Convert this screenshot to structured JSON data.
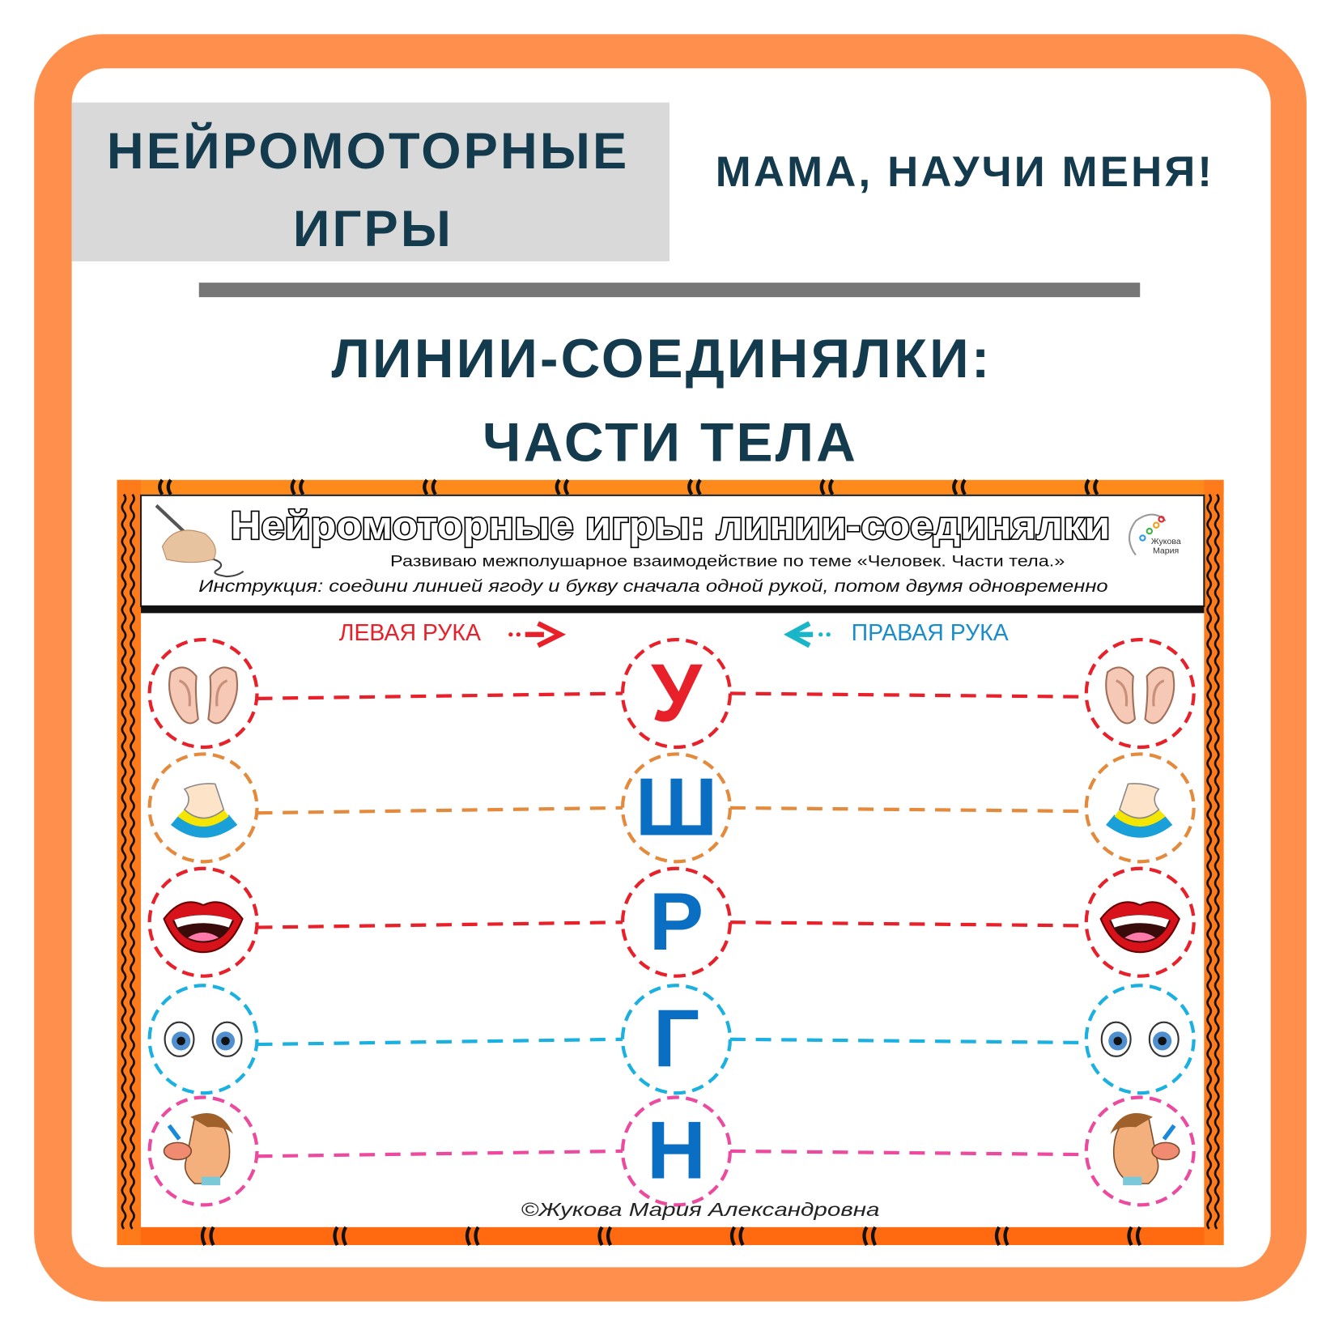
{
  "header": {
    "series_line1": "НЕЙРОМОТОРНЫЕ",
    "series_line2": "ИГРЫ",
    "slogan": "МАМА, НАУЧИ МЕНЯ!",
    "title_line1": "ЛИНИИ-СОЕДИНЯЛКИ:",
    "title_line2": "ЧАСТИ ТЕЛА"
  },
  "colors": {
    "frame": "#ff8f4c",
    "title_text": "#143b4d",
    "series_box": "#d9d9d9",
    "divider": "#767676"
  },
  "worksheet": {
    "title": "Нейромоторные игры: линии-соединялки",
    "subtitle": "Развиваю межполушарное взаимодействие по теме «Человек. Части тела.»",
    "instruction": "Инструкция: соедини линией  ягоду и букву сначала одной рукой, потом двумя одновременно",
    "logo_text_1": "Жукова",
    "logo_text_2": "Мария",
    "left_label": "ЛЕВАЯ РУКА",
    "right_label": "ПРАВАЯ РУКА",
    "copyright": "©Жукова Мария Александровна",
    "rows": [
      {
        "picture": "ears",
        "letter": "У",
        "ring_color": "#e8202a",
        "letter_color": "#e8202a"
      },
      {
        "picture": "neck",
        "letter": "Ш",
        "ring_color": "#e48a3c",
        "letter_color": "#0a6fc2"
      },
      {
        "picture": "mouth",
        "letter": "Р",
        "ring_color": "#e8202a",
        "letter_color": "#0a6fc2"
      },
      {
        "picture": "eyes",
        "letter": "Г",
        "ring_color": "#1ab0e0",
        "letter_color": "#0a6fc2"
      },
      {
        "picture": "nose",
        "letter": "Н",
        "ring_color": "#ec4a9e",
        "letter_color": "#0a6fc2"
      }
    ]
  }
}
